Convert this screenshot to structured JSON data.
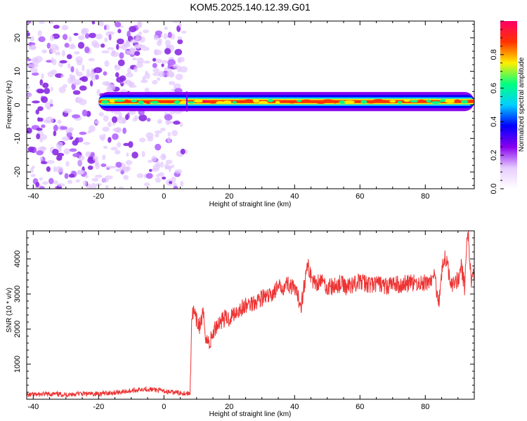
{
  "title": "KOM5.2025.140.12.39.G01",
  "chart_data": [
    {
      "type": "heatmap",
      "xlabel": "Height of straight line (km)",
      "ylabel": "Frequency (Hz)",
      "xlim": [
        -42,
        95
      ],
      "ylim": [
        -25,
        25
      ],
      "x_ticks": [
        -40,
        -20,
        0,
        20,
        40,
        60,
        80
      ],
      "y_ticks": [
        -20,
        -10,
        0,
        10,
        20
      ],
      "colorbar": {
        "label": "Normalized spectral amplitude",
        "range": [
          0,
          1
        ],
        "ticks": [
          "0.0",
          "0.2",
          "0.4",
          "0.6",
          "0.8"
        ],
        "colors": [
          "#ffffff",
          "#e6ccff",
          "#8800ee",
          "#0000ff",
          "#00d0ff",
          "#00ff80",
          "#ffee00",
          "#ff3300",
          "#ff0066"
        ]
      },
      "features": [
        {
          "label": "noise",
          "x_range": [
            -42,
            7
          ],
          "freq_range": [
            -25,
            25
          ],
          "amplitude": 0.15
        },
        {
          "label": "signal band",
          "x_range": [
            -20,
            95
          ],
          "freq_center": 1,
          "freq_halfwidth": 1.5,
          "amplitude": 0.9
        }
      ]
    },
    {
      "type": "line",
      "xlabel": "Height of straight line (km)",
      "ylabel": "SNR (10 * v/v)",
      "xlim": [
        -42,
        95
      ],
      "ylim": [
        0,
        4800
      ],
      "x_ticks": [
        -40,
        -20,
        0,
        20,
        40,
        60,
        80
      ],
      "y_ticks": [
        1000,
        2000,
        3000,
        4000
      ],
      "color": "#ee3333",
      "x": [
        -42,
        -38,
        -34,
        -30,
        -26,
        -22,
        -18,
        -14,
        -10,
        -6,
        -2,
        2,
        6,
        8,
        8.5,
        9,
        10,
        11,
        12,
        13,
        14,
        16,
        18,
        20,
        22,
        24,
        26,
        28,
        30,
        32,
        34,
        36,
        38,
        40,
        42,
        43,
        44,
        46,
        48,
        50,
        52,
        54,
        56,
        58,
        60,
        62,
        64,
        66,
        68,
        70,
        72,
        74,
        76,
        78,
        80,
        82,
        83,
        84,
        85,
        86,
        88,
        90,
        91,
        92,
        93,
        94,
        95
      ],
      "y": [
        120,
        140,
        150,
        130,
        160,
        150,
        170,
        200,
        240,
        300,
        260,
        200,
        180,
        160,
        2300,
        2500,
        2200,
        2100,
        2400,
        1700,
        1600,
        2100,
        2300,
        2300,
        2500,
        2600,
        2700,
        2800,
        2900,
        2900,
        3100,
        3200,
        3300,
        3100,
        2700,
        3300,
        3800,
        3300,
        3400,
        3200,
        3200,
        3300,
        3200,
        3300,
        3350,
        3300,
        3250,
        3300,
        3200,
        3300,
        3250,
        3300,
        3300,
        3300,
        3300,
        3400,
        3500,
        2700,
        3600,
        4100,
        3300,
        3400,
        3800,
        3200,
        4900,
        3400,
        3500
      ]
    }
  ]
}
